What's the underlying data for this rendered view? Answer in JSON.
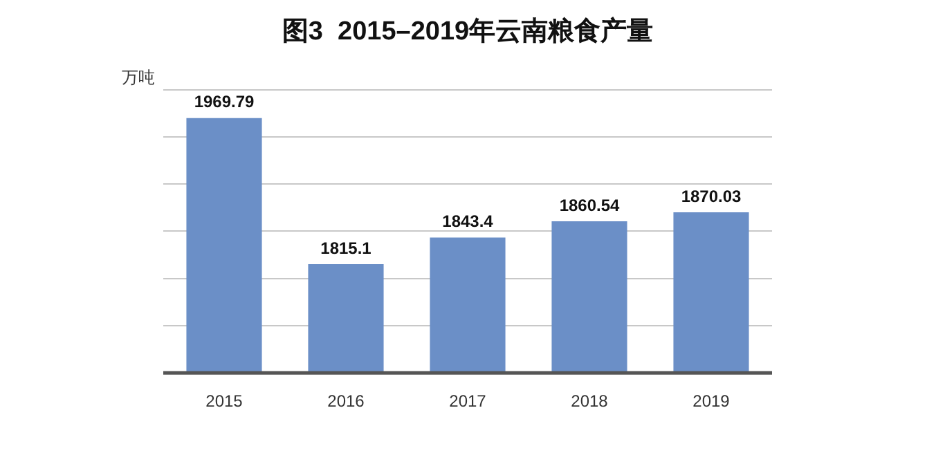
{
  "chart_data": {
    "type": "bar",
    "title": "图3  2015–2019年云南粮食产量",
    "ylabel": "万吨",
    "categories": [
      "2015",
      "2016",
      "2017",
      "2018",
      "2019"
    ],
    "values": [
      1969.79,
      1815.1,
      1843.4,
      1860.54,
      1870.03
    ],
    "color": "#6b8fc7",
    "ylim": [
      1700,
      2000
    ],
    "yticks": [
      {
        "value": 1700,
        "label": null
      },
      {
        "value": 1750,
        "label": null
      },
      {
        "value": 1800,
        "label": null
      },
      {
        "value": 1850,
        "label": null
      },
      {
        "value": 1900,
        "label": null
      },
      {
        "value": 1950,
        "label": null
      },
      {
        "value": 2000,
        "label": null
      }
    ],
    "grid": "y",
    "tick_labels": "x",
    "data_labels": true,
    "legend": false
  }
}
